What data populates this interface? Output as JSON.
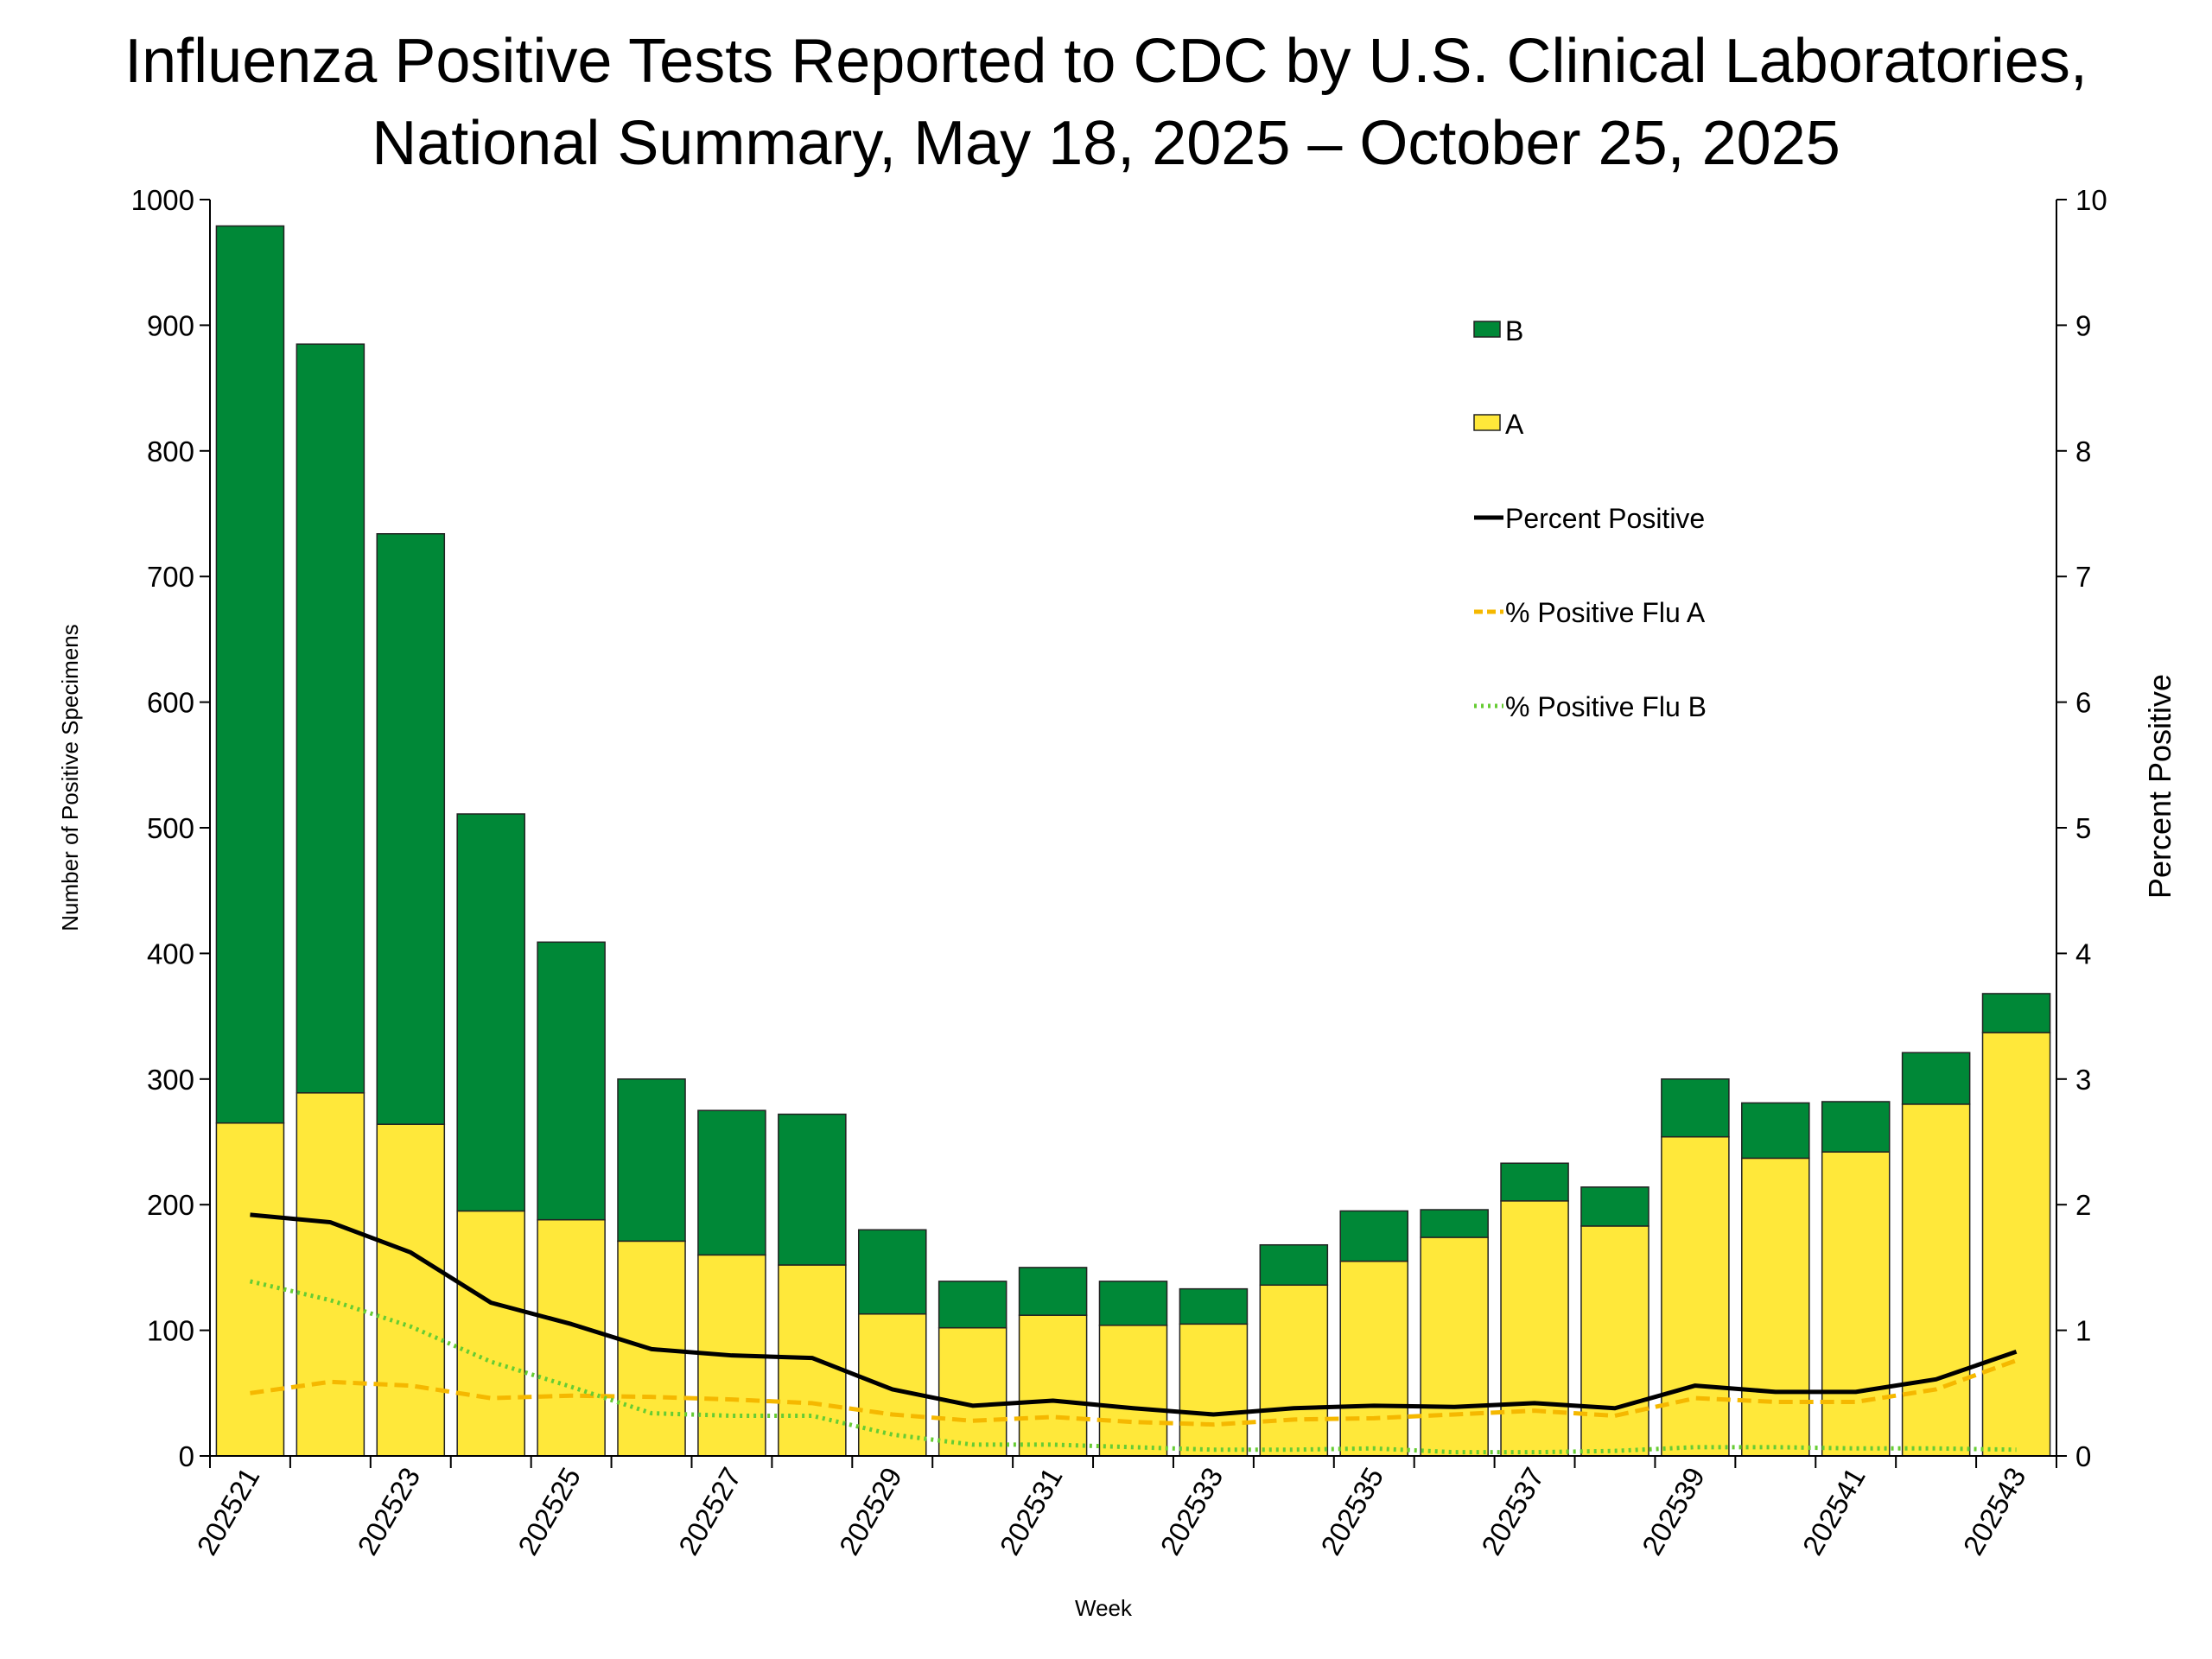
{
  "chart_data": {
    "type": "bar",
    "title": "Influenza Positive Tests Reported to CDC by U.S. Clinical Laboratories,",
    "subtitle": "National Summary, May 18, 2025 – October 25, 2025",
    "xlabel": "Week",
    "ylabel": "Number of Positive Specimens",
    "y2label": "Percent Positive",
    "ylim": [
      0,
      1000
    ],
    "y2lim": [
      0,
      10
    ],
    "yticks": [
      0,
      100,
      200,
      300,
      400,
      500,
      600,
      700,
      800,
      900,
      1000
    ],
    "y2ticks": [
      0,
      1,
      2,
      3,
      4,
      5,
      6,
      7,
      8,
      9,
      10
    ],
    "categories": [
      "202521",
      "202522",
      "202523",
      "202524",
      "202525",
      "202526",
      "202527",
      "202528",
      "202529",
      "202530",
      "202531",
      "202532",
      "202533",
      "202534",
      "202535",
      "202536",
      "202537",
      "202538",
      "202539",
      "202540",
      "202541",
      "202542",
      "202543"
    ],
    "xtick_labels": [
      "202521",
      "",
      "202523",
      "",
      "202525",
      "",
      "202527",
      "",
      "202529",
      "",
      "202531",
      "",
      "202533",
      "",
      "202535",
      "",
      "202537",
      "",
      "202539",
      "",
      "202541",
      "",
      "202543"
    ],
    "legend_position": "top-right",
    "bar_series": [
      {
        "name": "A",
        "color": "#FFE83A",
        "values": [
          265,
          289,
          264,
          195,
          188,
          171,
          160,
          152,
          113,
          102,
          112,
          104,
          105,
          136,
          155,
          174,
          203,
          183,
          254,
          237,
          242,
          280,
          337
        ]
      },
      {
        "name": "B",
        "color": "#008837",
        "values": [
          714,
          596,
          470,
          316,
          221,
          129,
          115,
          120,
          67,
          37,
          38,
          35,
          28,
          32,
          40,
          22,
          30,
          31,
          46,
          44,
          40,
          41,
          31
        ]
      }
    ],
    "line_series": [
      {
        "name": "Percent Positive",
        "color": "#000000",
        "style": "solid",
        "values": [
          1.92,
          1.86,
          1.62,
          1.22,
          1.05,
          0.85,
          0.8,
          0.78,
          0.53,
          0.4,
          0.44,
          0.38,
          0.33,
          0.38,
          0.4,
          0.39,
          0.42,
          0.38,
          0.56,
          0.51,
          0.51,
          0.61,
          0.83
        ]
      },
      {
        "name": "% Positive Flu A",
        "color": "#F5B800",
        "style": "dashed",
        "values": [
          0.5,
          0.59,
          0.56,
          0.46,
          0.48,
          0.47,
          0.45,
          0.42,
          0.33,
          0.28,
          0.31,
          0.27,
          0.25,
          0.29,
          0.3,
          0.33,
          0.36,
          0.32,
          0.46,
          0.43,
          0.43,
          0.53,
          0.76
        ]
      },
      {
        "name": "% Positive Flu B",
        "color": "#66CC33",
        "style": "dotted",
        "values": [
          1.39,
          1.24,
          1.03,
          0.75,
          0.55,
          0.34,
          0.32,
          0.32,
          0.17,
          0.09,
          0.09,
          0.07,
          0.05,
          0.05,
          0.06,
          0.03,
          0.03,
          0.04,
          0.07,
          0.07,
          0.06,
          0.06,
          0.05
        ]
      }
    ],
    "legend": [
      "B",
      "A",
      "Percent Positive",
      "% Positive Flu A",
      "% Positive Flu B"
    ],
    "grid": false
  }
}
